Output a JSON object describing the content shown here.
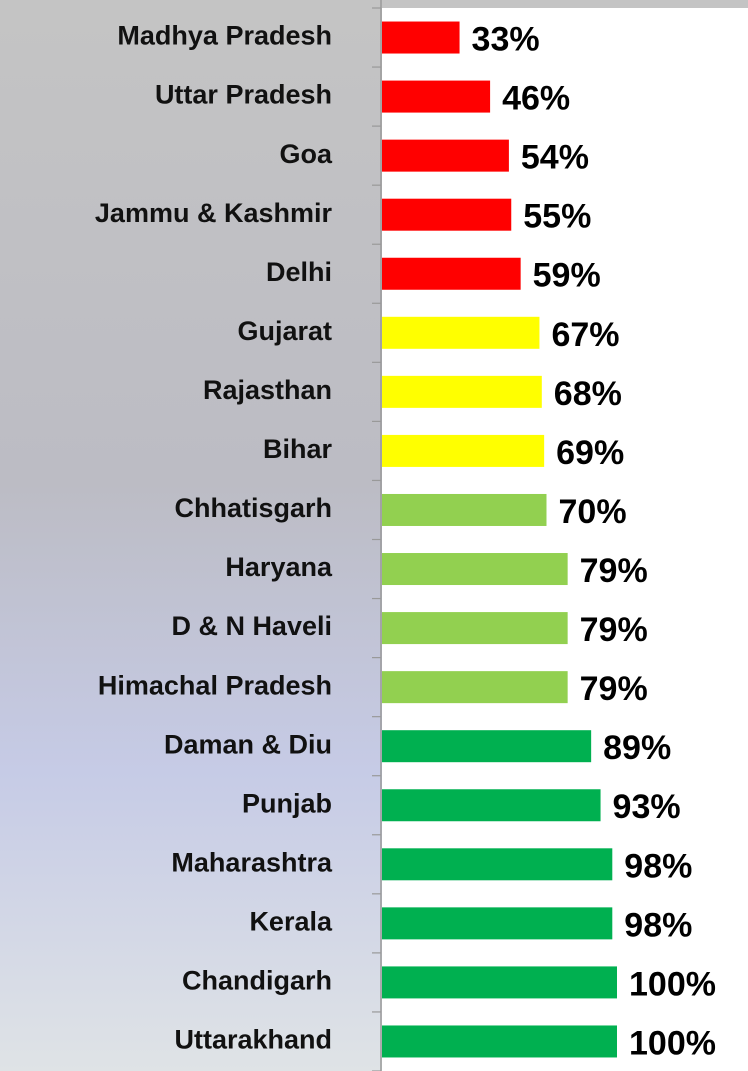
{
  "chart_data": {
    "type": "bar",
    "orientation": "horizontal",
    "categories": [
      "Madhya Pradesh",
      "Uttar Pradesh",
      "Goa",
      "Jammu & Kashmir",
      "Delhi",
      "Gujarat",
      "Rajasthan",
      "Bihar",
      "Chhatisgarh",
      "Haryana",
      "D & N Haveli",
      "Himachal Pradesh",
      "Daman & Diu",
      "Punjab",
      "Maharashtra",
      "Kerala",
      "Chandigarh",
      "Uttarakhand"
    ],
    "values": [
      33,
      46,
      54,
      55,
      59,
      67,
      68,
      69,
      70,
      79,
      79,
      79,
      89,
      93,
      98,
      98,
      100,
      100
    ],
    "value_labels": [
      "33%",
      "46%",
      "54%",
      "55%",
      "59%",
      "67%",
      "68%",
      "69%",
      "70%",
      "79%",
      "79%",
      "79%",
      "89%",
      "93%",
      "98%",
      "98%",
      "100%",
      "100%"
    ],
    "colors": [
      "#ff0000",
      "#ff0000",
      "#ff0000",
      "#ff0000",
      "#ff0000",
      "#ffff00",
      "#ffff00",
      "#ffff00",
      "#92d050",
      "#92d050",
      "#92d050",
      "#92d050",
      "#00b050",
      "#00b050",
      "#00b050",
      "#00b050",
      "#00b050",
      "#00b050"
    ],
    "xlim": [
      0,
      100
    ]
  }
}
